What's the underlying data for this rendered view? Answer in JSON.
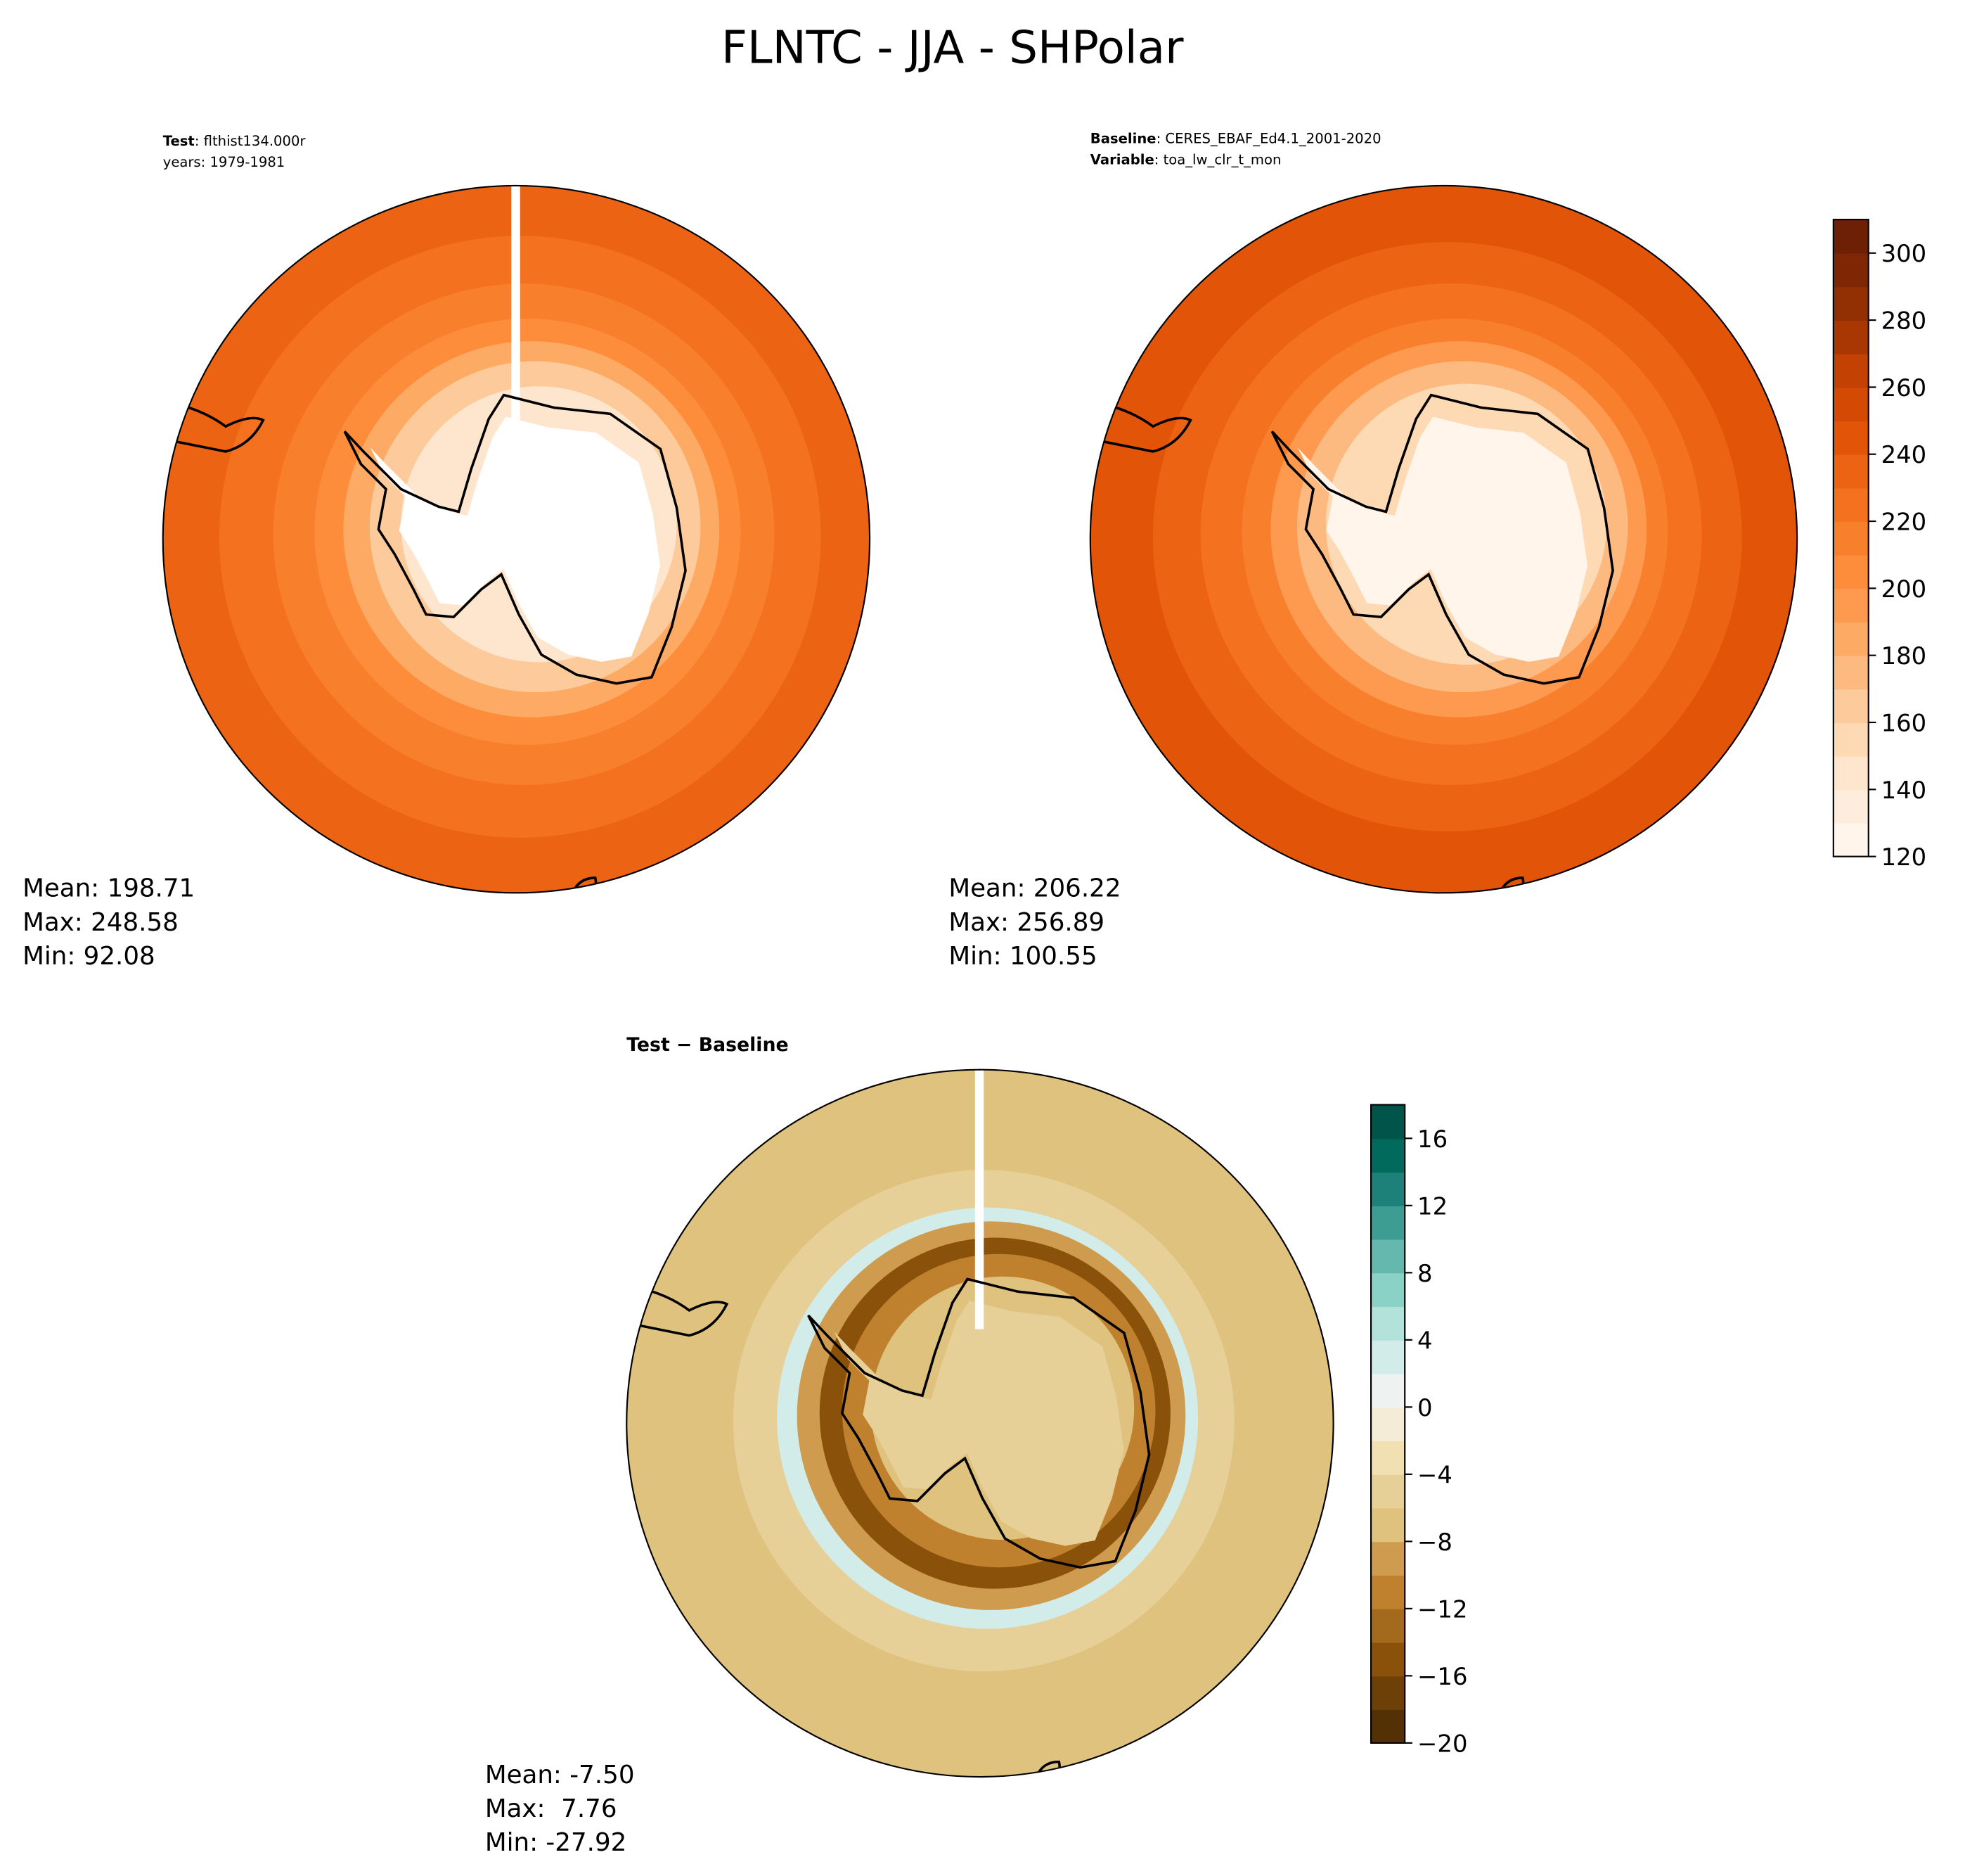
{
  "title": "FLNTC - JJA - SHPolar",
  "panels": [
    {
      "header": [
        {
          "bold": "Test",
          "text": ": flthist134.000r"
        },
        {
          "text": "years: 1979-1981"
        }
      ],
      "stats": [
        "Mean: 198.71",
        "Max: 248.58",
        "Min: 92.08"
      ]
    },
    {
      "header": [
        {
          "bold": "Baseline",
          "text": ": CERES_EBAF_Ed4.1_2001-2020"
        },
        {
          "bold": "Variable",
          "text": ": toa_lw_clr_t_mon"
        }
      ],
      "stats": [
        "Mean: 206.22",
        "Max: 256.89",
        "Min: 100.55"
      ]
    },
    {
      "header": [
        {
          "bold": "Test − Baseline"
        }
      ],
      "stats": [
        "Mean: -7.50",
        "Max:  7.76",
        "Min: -27.92"
      ]
    }
  ],
  "colorbars": [
    {
      "range": [
        120,
        310
      ],
      "ticks": [
        120,
        140,
        160,
        180,
        200,
        220,
        240,
        260,
        280,
        300
      ],
      "colors": [
        "#fff5eb",
        "#feeddc",
        "#fee6ce",
        "#fdd9b4",
        "#fdcb9b",
        "#fdba80",
        "#fdaa65",
        "#fd9a50",
        "#fd8c3b",
        "#f87f2c",
        "#f4711f",
        "#ec6313",
        "#e25509",
        "#d44a04",
        "#c24103",
        "#a93703",
        "#933003",
        "#7f2704",
        "#6e2004"
      ]
    },
    {
      "range": [
        -20,
        18
      ],
      "ticks": [
        {
          "value": -20,
          "label": "−20"
        },
        {
          "value": -16,
          "label": "−16"
        },
        {
          "value": -12,
          "label": "−12"
        },
        {
          "value": -8,
          "label": "−8"
        },
        {
          "value": -4,
          "label": "−4"
        },
        0,
        4,
        8,
        12,
        16
      ],
      "colors": [
        "#543005",
        "#6d4007",
        "#8a510b",
        "#a36a1d",
        "#bf812d",
        "#cf9b4f",
        "#dfc27d",
        "#e6d097",
        "#f0e0b2",
        "#f5ecd7",
        "#eef3f2",
        "#d1ece9",
        "#b3e2db",
        "#8bd2c6",
        "#65b8ad",
        "#3d9d93",
        "#1d8179",
        "#016a5d",
        "#00544a"
      ]
    }
  ]
}
